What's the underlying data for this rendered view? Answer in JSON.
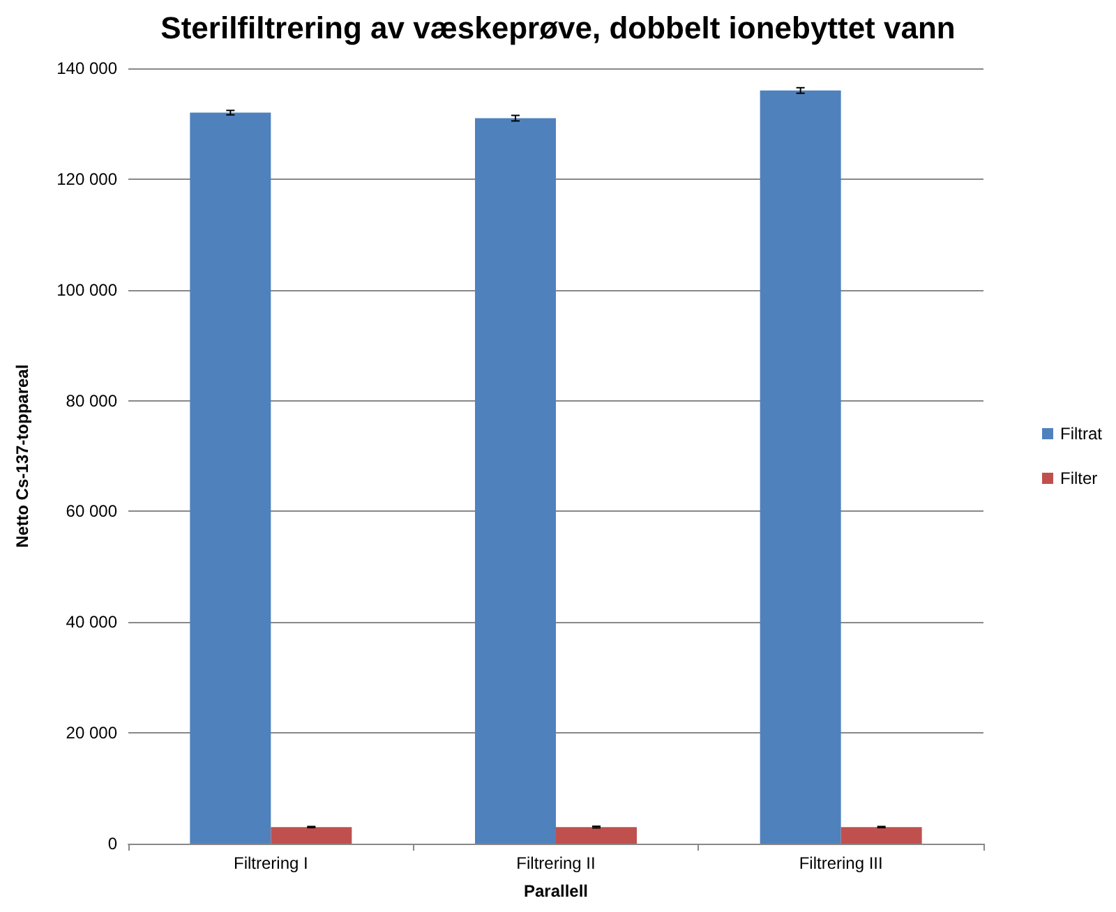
{
  "chart_data": {
    "type": "bar",
    "title": "Sterilfiltrering av væskeprøve, dobbelt ionebyttet vann",
    "xlabel": "Parallell",
    "ylabel": "Netto Cs-137-toppareal",
    "categories": [
      "Filtrering I",
      "Filtrering II",
      "Filtrering III"
    ],
    "series": [
      {
        "name": "Filtrat",
        "color": "#4f81bd",
        "values": [
          132000,
          131000,
          136000
        ],
        "errors": [
          400,
          500,
          500
        ]
      },
      {
        "name": "Filter",
        "color": "#c0504d",
        "values": [
          3000,
          3000,
          3000
        ],
        "errors": [
          100,
          150,
          100
        ]
      }
    ],
    "ylim": [
      0,
      140000
    ],
    "yticks": [
      {
        "value": 0,
        "label": "0"
      },
      {
        "value": 20000,
        "label": "20 000"
      },
      {
        "value": 40000,
        "label": "40 000"
      },
      {
        "value": 60000,
        "label": "60 000"
      },
      {
        "value": 80000,
        "label": "80 000"
      },
      {
        "value": 100000,
        "label": "100 000"
      },
      {
        "value": 120000,
        "label": "120 000"
      },
      {
        "value": 140000,
        "label": "140 000"
      }
    ],
    "grid": "y",
    "legend": "right"
  }
}
